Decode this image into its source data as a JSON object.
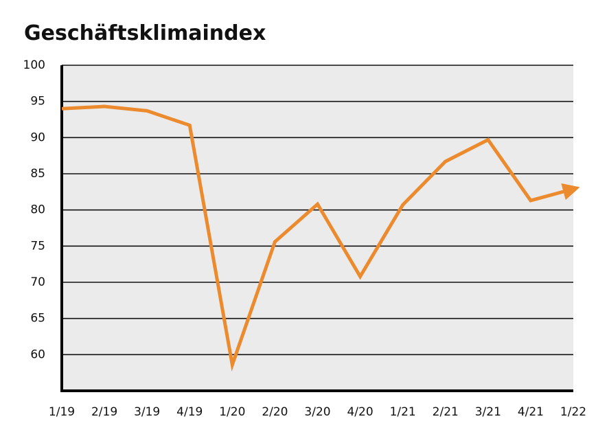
{
  "chart_data": {
    "type": "line",
    "title": "Geschäftsklimaindex",
    "categories": [
      "1/19",
      "2/19",
      "3/19",
      "4/19",
      "1/20",
      "2/20",
      "3/20",
      "4/20",
      "1/21",
      "2/21",
      "3/21",
      "4/21",
      "1/22"
    ],
    "values": [
      94.0,
      94.3,
      93.7,
      91.7,
      58.6,
      75.6,
      80.8,
      70.8,
      80.7,
      86.7,
      89.7,
      81.3,
      82.9
    ],
    "color": "#ec8a2e",
    "ylim": [
      55,
      100
    ],
    "yticks": [
      60,
      65,
      70,
      75,
      80,
      85,
      90,
      95,
      100
    ],
    "grid": true,
    "end_arrow": true
  }
}
